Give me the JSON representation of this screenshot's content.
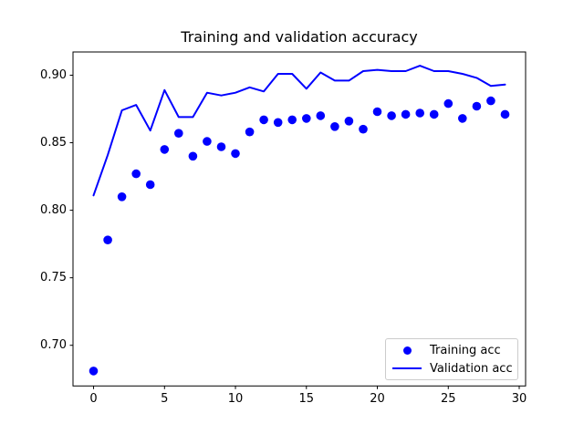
{
  "chart_data": {
    "type": "line",
    "title": "Training and validation accuracy",
    "xlabel": "",
    "ylabel": "",
    "x": [
      0,
      1,
      2,
      3,
      4,
      5,
      6,
      7,
      8,
      9,
      10,
      11,
      12,
      13,
      14,
      15,
      16,
      17,
      18,
      19,
      20,
      21,
      22,
      23,
      24,
      25,
      26,
      27,
      28,
      29
    ],
    "series": [
      {
        "name": "Training acc",
        "style": "scatter",
        "marker": "circle",
        "color": "#0000ff",
        "values": [
          0.681,
          0.778,
          0.81,
          0.827,
          0.819,
          0.845,
          0.857,
          0.84,
          0.851,
          0.847,
          0.842,
          0.858,
          0.867,
          0.865,
          0.867,
          0.868,
          0.87,
          0.862,
          0.866,
          0.86,
          0.873,
          0.87,
          0.871,
          0.872,
          0.871,
          0.879,
          0.868,
          0.877,
          0.881,
          0.871
        ]
      },
      {
        "name": "Validation acc",
        "style": "line",
        "marker": "none",
        "color": "#0000ff",
        "values": [
          0.811,
          0.841,
          0.874,
          0.878,
          0.859,
          0.889,
          0.869,
          0.869,
          0.887,
          0.885,
          0.887,
          0.891,
          0.888,
          0.901,
          0.901,
          0.89,
          0.902,
          0.896,
          0.896,
          0.903,
          0.904,
          0.903,
          0.903,
          0.907,
          0.903,
          0.903,
          0.901,
          0.898,
          0.892,
          0.893
        ]
      }
    ],
    "x_ticks": [
      0,
      5,
      10,
      15,
      20,
      25,
      30
    ],
    "x_tick_labels": [
      "0",
      "5",
      "10",
      "15",
      "20",
      "25",
      "30"
    ],
    "y_ticks": [
      0.7,
      0.75,
      0.8,
      0.85,
      0.9
    ],
    "y_tick_labels": [
      "0.70",
      "0.75",
      "0.80",
      "0.85",
      "0.90"
    ],
    "xlim": [
      -1.45,
      30.45
    ],
    "ylim": [
      0.6699,
      0.9172
    ],
    "grid": false,
    "legend_position": "lower right",
    "background": "#ffffff",
    "spine_color": "#000000",
    "text_color": "#000000"
  }
}
